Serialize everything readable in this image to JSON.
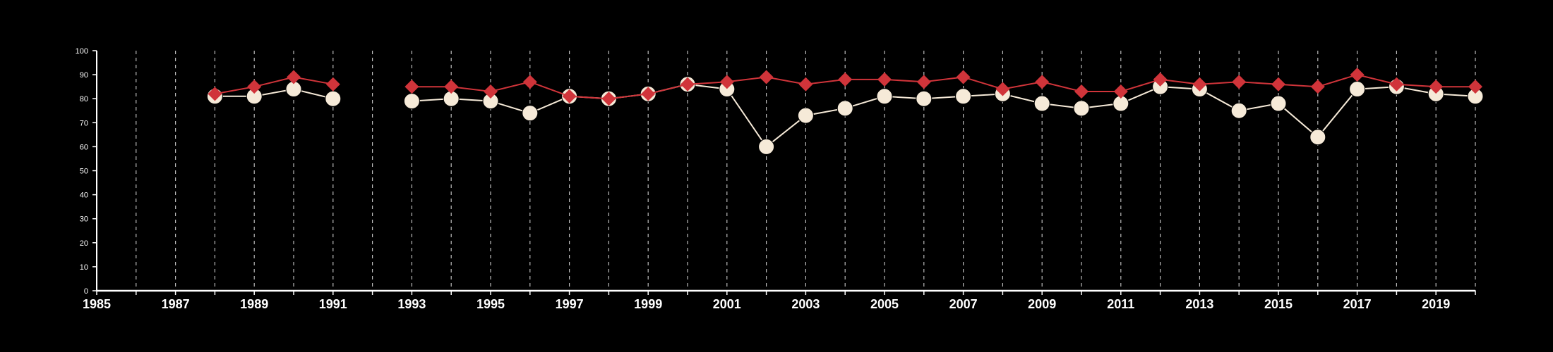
{
  "chart_data": {
    "type": "line",
    "title": "",
    "xlabel": "",
    "ylabel": "",
    "xlim": [
      1985,
      2020
    ],
    "ylim": [
      0,
      100
    ],
    "x_ticks": [
      "1985",
      "1987",
      "1989",
      "1991",
      "1993",
      "1995",
      "1997",
      "1999",
      "2001",
      "2003",
      "2005",
      "2007",
      "2009",
      "2011",
      "2013",
      "2015",
      "2017",
      "2019"
    ],
    "y_ticks": [
      "0",
      "10",
      "20",
      "30",
      "40",
      "50",
      "60",
      "70",
      "80",
      "90",
      "100"
    ],
    "vertical_grid": "dashed, one per year",
    "legend": "none",
    "colors": {
      "background": "#000000",
      "axis": "#ffffff",
      "grid": "#bbbbbb",
      "series_red": "#d0343a",
      "series_cream": "#f6ead8"
    },
    "series": [
      {
        "marker": "diamond",
        "color": "#d0343a",
        "points": [
          {
            "x": 1988,
            "y": 82
          },
          {
            "x": 1989,
            "y": 85
          },
          {
            "x": 1990,
            "y": 89
          },
          {
            "x": 1991,
            "y": 86
          },
          {
            "x": 1993,
            "y": 85
          },
          {
            "x": 1994,
            "y": 85
          },
          {
            "x": 1995,
            "y": 83
          },
          {
            "x": 1996,
            "y": 87
          },
          {
            "x": 1997,
            "y": 81
          },
          {
            "x": 1998,
            "y": 80
          },
          {
            "x": 1999,
            "y": 82
          },
          {
            "x": 2000,
            "y": 86
          },
          {
            "x": 2001,
            "y": 87
          },
          {
            "x": 2002,
            "y": 89
          },
          {
            "x": 2003,
            "y": 86
          },
          {
            "x": 2004,
            "y": 88
          },
          {
            "x": 2005,
            "y": 88
          },
          {
            "x": 2006,
            "y": 87
          },
          {
            "x": 2007,
            "y": 89
          },
          {
            "x": 2008,
            "y": 84
          },
          {
            "x": 2009,
            "y": 87
          },
          {
            "x": 2010,
            "y": 83
          },
          {
            "x": 2011,
            "y": 83
          },
          {
            "x": 2012,
            "y": 88
          },
          {
            "x": 2013,
            "y": 86
          },
          {
            "x": 2014,
            "y": 87
          },
          {
            "x": 2015,
            "y": 86
          },
          {
            "x": 2016,
            "y": 85
          },
          {
            "x": 2017,
            "y": 90
          },
          {
            "x": 2018,
            "y": 86
          },
          {
            "x": 2019,
            "y": 85
          },
          {
            "x": 2020,
            "y": 85
          }
        ]
      },
      {
        "marker": "circle",
        "color": "#f6ead8",
        "points": [
          {
            "x": 1988,
            "y": 81
          },
          {
            "x": 1989,
            "y": 81
          },
          {
            "x": 1990,
            "y": 84
          },
          {
            "x": 1991,
            "y": 80
          },
          {
            "x": 1993,
            "y": 79
          },
          {
            "x": 1994,
            "y": 80
          },
          {
            "x": 1995,
            "y": 79
          },
          {
            "x": 1996,
            "y": 74
          },
          {
            "x": 1997,
            "y": 81
          },
          {
            "x": 1998,
            "y": 80
          },
          {
            "x": 1999,
            "y": 82
          },
          {
            "x": 2000,
            "y": 86
          },
          {
            "x": 2001,
            "y": 84
          },
          {
            "x": 2002,
            "y": 60
          },
          {
            "x": 2003,
            "y": 73
          },
          {
            "x": 2004,
            "y": 76
          },
          {
            "x": 2005,
            "y": 81
          },
          {
            "x": 2006,
            "y": 80
          },
          {
            "x": 2007,
            "y": 81
          },
          {
            "x": 2008,
            "y": 82
          },
          {
            "x": 2009,
            "y": 78
          },
          {
            "x": 2010,
            "y": 76
          },
          {
            "x": 2011,
            "y": 78
          },
          {
            "x": 2012,
            "y": 85
          },
          {
            "x": 2013,
            "y": 84
          },
          {
            "x": 2014,
            "y": 75
          },
          {
            "x": 2015,
            "y": 78
          },
          {
            "x": 2016,
            "y": 64
          },
          {
            "x": 2017,
            "y": 84
          },
          {
            "x": 2018,
            "y": 85
          },
          {
            "x": 2019,
            "y": 82
          },
          {
            "x": 2020,
            "y": 81
          }
        ]
      }
    ]
  }
}
